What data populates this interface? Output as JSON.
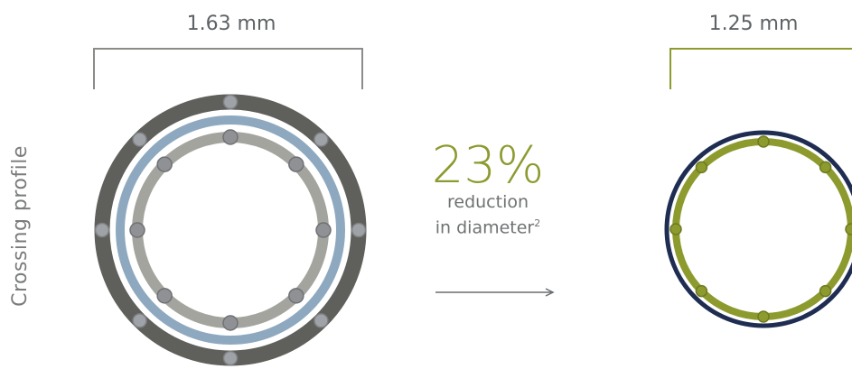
{
  "side_label": "Crossing profile",
  "left_dimension": "1.63 mm",
  "right_dimension": "1.25 mm",
  "stat": {
    "value": "23%",
    "line1": "reduction",
    "line2": "in diameter",
    "footnote": "2"
  },
  "colors": {
    "outer_ring": "#5f605b",
    "blue_ring": "#8ea9bf",
    "inner_ring": "#a4a49f",
    "strut_node": "#9fa2a6",
    "bracket_left": "#8a8c88",
    "accent_green": "#8d9a2e",
    "navy_ring": "#1f2d52",
    "arrow": "#6a6d70"
  },
  "icons": [
    "arrow-right-icon"
  ]
}
